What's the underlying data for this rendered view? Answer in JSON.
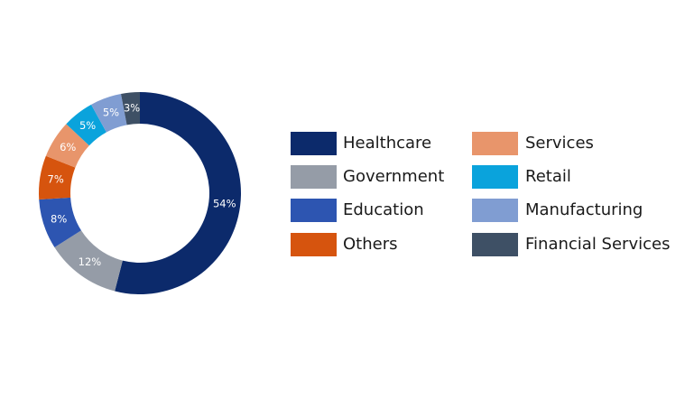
{
  "chart_data": {
    "type": "pie",
    "categories": [
      "Healthcare",
      "Government",
      "Education",
      "Others",
      "Services",
      "Retail",
      "Manufacturing",
      "Financial Services"
    ],
    "values": [
      54,
      12,
      8,
      7,
      6,
      5,
      5,
      3
    ],
    "value_labels": [
      "54%",
      "12%",
      "8%",
      "7%",
      "6%",
      "5%",
      "5%",
      "3%"
    ],
    "colors": [
      "#0c2a6b",
      "#959ca7",
      "#2d55b1",
      "#d6540e",
      "#e8956b",
      "#0aa3dc",
      "#809dd2",
      "#3e5065"
    ]
  }
}
